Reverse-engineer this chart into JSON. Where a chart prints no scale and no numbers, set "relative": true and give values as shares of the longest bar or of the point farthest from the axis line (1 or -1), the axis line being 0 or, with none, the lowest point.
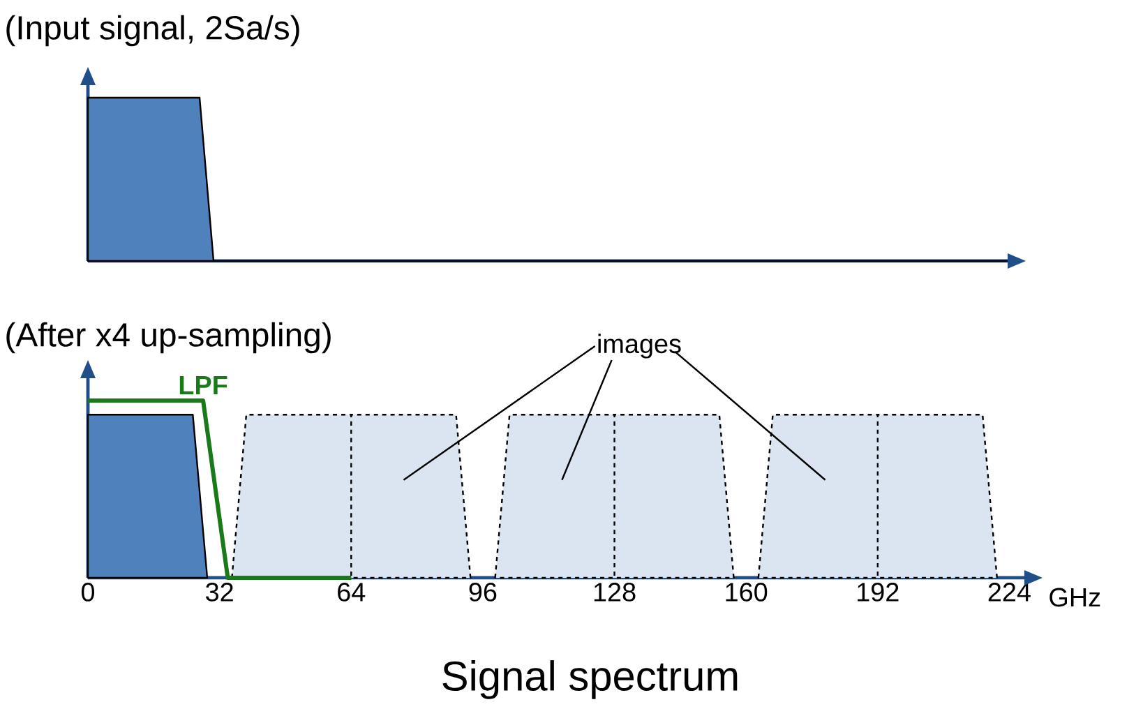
{
  "chart_data": [
    {
      "type": "area",
      "title": "(Input signal, 2Sa/s)",
      "relative": true,
      "tick_labels": false,
      "categories": [
        null,
        null,
        null,
        null,
        null,
        null,
        null,
        null,
        null,
        null,
        null,
        null,
        null,
        null,
        null,
        null,
        null,
        null,
        null,
        null,
        null,
        null,
        null,
        null,
        null,
        null,
        null,
        null,
        null,
        null,
        null,
        null,
        null,
        null,
        null,
        null,
        null,
        null,
        null,
        null,
        null,
        null,
        null,
        null,
        null,
        null,
        null,
        null,
        null,
        null,
        null,
        null,
        null,
        null,
        null,
        null,
        null,
        null,
        null,
        null,
        null,
        null,
        null,
        null,
        null,
        null,
        null
      ],
      "series": [
        {
          "color": "#4f81bd",
          "values": [
            1,
            1,
            1,
            1,
            1,
            1,
            1,
            1,
            1,
            0,
            0,
            0,
            0,
            0,
            0,
            0,
            0,
            0,
            0,
            0,
            0,
            0,
            0,
            0,
            0,
            0,
            0,
            0,
            0,
            0,
            0,
            0,
            0,
            0,
            0,
            0,
            0,
            0,
            0,
            0,
            0,
            0,
            0,
            0,
            0,
            0,
            0,
            0,
            0,
            0,
            0,
            0,
            0,
            0,
            0,
            0,
            0,
            0,
            0,
            0,
            0,
            0,
            0,
            0,
            0,
            0,
            0
          ]
        }
      ]
    },
    {
      "type": "area",
      "title": "(After x4 up-sampling)",
      "xlabel": "GHz",
      "relative": true,
      "tick_labels": "x",
      "xlim": [
        0,
        228
      ],
      "xticks": [
        0,
        32,
        64,
        96,
        128,
        160,
        192,
        224
      ],
      "annotations": [
        "images",
        "Signal spectrum"
      ],
      "series": [
        {
          "color": "#4f81bd",
          "x": [
            0,
            25.5,
            29
          ],
          "values": [
            0.92,
            0.92,
            0
          ]
        },
        {
          "color": "#dbe5f1",
          "line_style": "dashed",
          "x": [
            35,
            38.5,
            64,
            64,
            64,
            89.5,
            93
          ],
          "values": [
            0,
            0.92,
            0.92,
            0,
            0.92,
            0.92,
            0
          ]
        },
        {
          "color": "#dbe5f1",
          "line_style": "dashed",
          "x": [
            99,
            102.5,
            128,
            128,
            128,
            153.5,
            157
          ],
          "values": [
            0,
            0.92,
            0.92,
            0,
            0.92,
            0.92,
            0
          ]
        },
        {
          "color": "#dbe5f1",
          "line_style": "dashed",
          "x": [
            163,
            166.5,
            192,
            192,
            192,
            217.5,
            221
          ],
          "values": [
            0,
            0.92,
            0.92,
            0,
            0.92,
            0.92,
            0
          ]
        },
        {
          "type": "line",
          "name": "LPF",
          "color": "#1a7a1a",
          "x": [
            0,
            28,
            34,
            64
          ],
          "values": [
            1,
            1,
            0,
            0
          ]
        }
      ]
    }
  ]
}
